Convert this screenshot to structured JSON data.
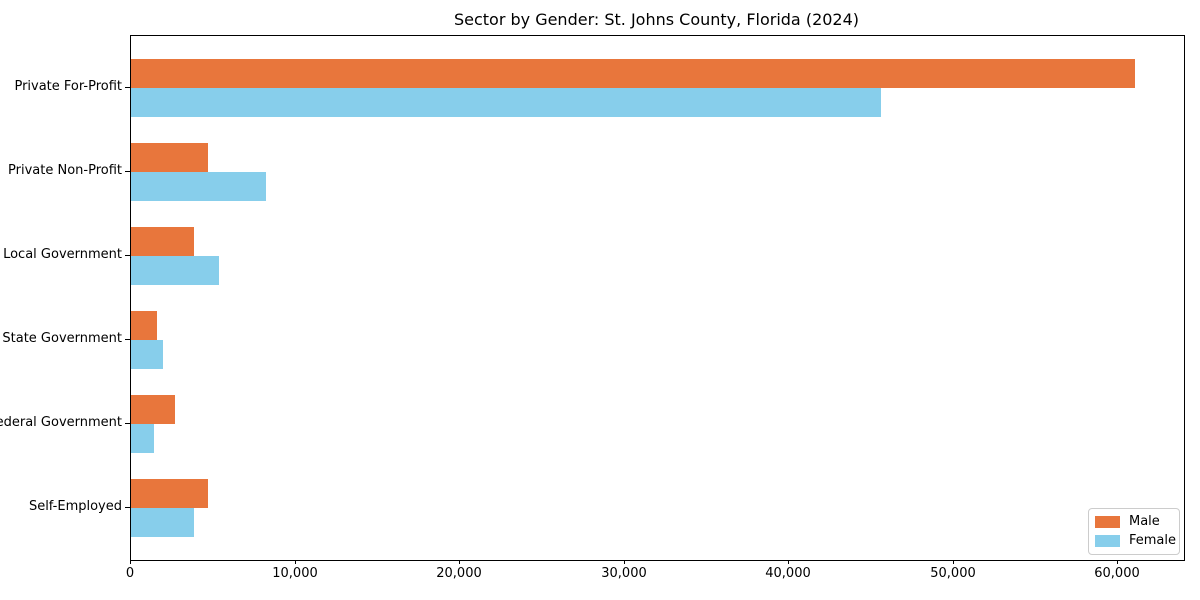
{
  "title": "Sector by Gender: St. Johns County, Florida (2024)",
  "chart_data": {
    "type": "bar",
    "orientation": "horizontal",
    "title": "Sector by Gender: St. Johns County, Florida (2024)",
    "xlabel": "",
    "ylabel": "",
    "categories": [
      "Private For-Profit",
      "Private Non-Profit",
      "Local Government",
      "State Government",
      "Federal Government",
      "Self-Employed"
    ],
    "series": [
      {
        "name": "Male",
        "color": "#e8763c",
        "values": [
          61000,
          4700,
          3800,
          1600,
          2700,
          4700
        ]
      },
      {
        "name": "Female",
        "color": "#87ceeb",
        "values": [
          45600,
          8200,
          5350,
          1950,
          1400,
          3800
        ]
      }
    ],
    "xlim": [
      0,
      64000
    ],
    "xticks": {
      "values": [
        0,
        10000,
        20000,
        30000,
        40000,
        50000,
        60000
      ],
      "labels": [
        "0",
        "10,000",
        "20,000",
        "30,000",
        "40,000",
        "50,000",
        "60,000"
      ]
    },
    "grid": false,
    "legend": {
      "position": "lower right"
    }
  },
  "colors": {
    "male": "#e8763c",
    "female": "#87ceeb",
    "axis": "#000000",
    "background": "#ffffff",
    "legend_border": "#cccccc"
  }
}
